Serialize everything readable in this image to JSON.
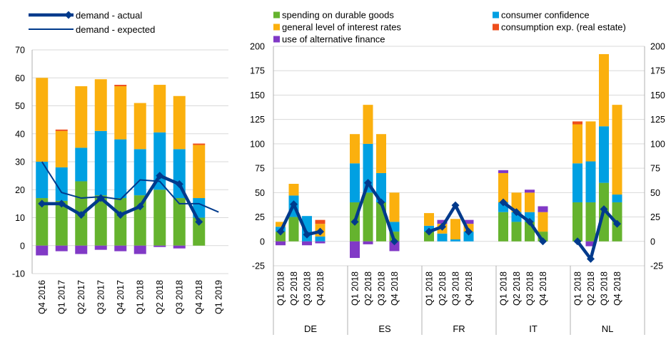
{
  "colors": {
    "durable": "#65b32e",
    "confidence": "#00a0e2",
    "interest": "#fbb00e",
    "realestate": "#ee4e1c",
    "altfin": "#8139c6",
    "actual": "#003a8c",
    "grid": "#d9d9d9",
    "axis": "#b0b0b0"
  },
  "chart_data": [
    {
      "type": "bar",
      "stacked": true,
      "categories": [
        "Q4 2016",
        "Q1 2017",
        "Q2 2017",
        "Q3 2017",
        "Q4 2017",
        "Q1 2018",
        "Q2 2018",
        "Q3 2018",
        "Q4 2018",
        "Q1 2019"
      ],
      "ylim": [
        -10,
        70
      ],
      "yticks": [
        -10,
        0,
        10,
        20,
        30,
        40,
        50,
        60,
        70
      ],
      "grid": true,
      "legend": "top-left",
      "series": [
        {
          "name": "spending on durable goods",
          "values": [
            17,
            16,
            23,
            18,
            17,
            18,
            20,
            17,
            10,
            null
          ]
        },
        {
          "name": "consumer confidence",
          "values": [
            13,
            12,
            12,
            23,
            21,
            16.5,
            20.5,
            17.5,
            7,
            null
          ]
        },
        {
          "name": "general level of interest rates",
          "values": [
            30,
            13,
            22,
            18.5,
            19,
            16.5,
            17,
            19,
            19,
            null
          ]
        },
        {
          "name": "consumption exp. (real estate)",
          "values": [
            0,
            0.5,
            0,
            0,
            0.5,
            0,
            0,
            0,
            0.5,
            null
          ]
        },
        {
          "name": "use of alternative finance",
          "values": [
            -3.5,
            -2,
            -3,
            -1.5,
            -2,
            -3,
            -0.5,
            -1,
            0,
            null
          ]
        }
      ],
      "lines": [
        {
          "name": "demand - actual",
          "values": [
            15,
            15,
            11,
            17,
            11,
            14,
            25,
            22,
            8.5,
            null
          ]
        },
        {
          "name": "demand - expected",
          "values": [
            30,
            19,
            17,
            17.5,
            16.5,
            23.5,
            23,
            15,
            15,
            12
          ]
        }
      ],
      "legend_entries": [
        "demand - actual",
        "demand - expected"
      ]
    },
    {
      "type": "bar",
      "stacked": true,
      "groups": [
        {
          "label": "DE",
          "categories": [
            "Q1 2018",
            "Q2 2018",
            "Q3 2018",
            "Q4 2018"
          ]
        },
        {
          "label": "ES",
          "categories": [
            "Q1 2018",
            "Q2 2018",
            "Q3 2018",
            "Q4 2018"
          ]
        },
        {
          "label": "FR",
          "categories": [
            "Q1 2018",
            "Q2 2018",
            "Q3 2018",
            "Q4 2018"
          ]
        },
        {
          "label": "IT",
          "categories": [
            "Q1 2018",
            "Q2 2018",
            "Q3 2018",
            "Q4 2018"
          ]
        },
        {
          "label": "NL",
          "categories": [
            "Q1 2018",
            "Q2 2018",
            "Q3 2018",
            "Q4 2018"
          ]
        }
      ],
      "ylim": [
        -25,
        200
      ],
      "yticks": [
        -25,
        0,
        25,
        50,
        75,
        100,
        125,
        150,
        175,
        200
      ],
      "grid": true,
      "legend": "top",
      "series": [
        {
          "name": "spending on durable goods",
          "values": [
            [
              10,
              25,
              0,
              0
            ],
            [
              40,
              50,
              40,
              10
            ],
            [
              10,
              0,
              0,
              0
            ],
            [
              30,
              20,
              20,
              10
            ],
            [
              40,
              40,
              60,
              40
            ]
          ]
        },
        {
          "name": "consumer confidence",
          "values": [
            [
              5,
              22,
              26,
              5
            ],
            [
              40,
              50,
              30,
              10
            ],
            [
              6,
              8,
              2,
              10
            ],
            [
              10,
              10,
              10,
              0
            ],
            [
              40,
              42,
              58,
              8
            ]
          ]
        },
        {
          "name": "general level of interest rates",
          "values": [
            [
              5,
              12,
              0,
              13
            ],
            [
              30,
              40,
              40,
              30
            ],
            [
              13,
              10,
              21,
              8
            ],
            [
              30,
              20,
              20,
              20
            ],
            [
              40,
              41,
              74,
              92
            ]
          ]
        },
        {
          "name": "consumption exp. (real estate)",
          "values": [
            [
              0,
              0,
              0,
              4
            ],
            [
              0,
              0,
              0,
              0
            ],
            [
              0,
              0,
              0,
              0
            ],
            [
              0,
              0,
              0,
              0
            ],
            [
              3,
              0,
              0,
              0
            ]
          ]
        },
        {
          "name": "use of alternative finance",
          "values": [
            [
              -4,
              0,
              -4,
              -2
            ],
            [
              -17,
              -3,
              0,
              -10
            ],
            [
              0,
              4,
              0,
              4
            ],
            [
              3,
              0,
              3,
              6
            ],
            [
              0,
              -5,
              0,
              0
            ]
          ]
        }
      ],
      "lines": [
        {
          "name": "demand - actual",
          "values": [
            [
              10,
              38,
              7,
              10
            ],
            [
              20,
              60,
              40,
              0
            ],
            [
              10,
              15,
              37,
              10
            ],
            [
              40,
              30,
              20,
              0
            ],
            [
              0,
              -18,
              33,
              18
            ]
          ]
        }
      ],
      "legend_entries": [
        "spending on durable goods",
        "consumer confidence",
        "general level of interest rates",
        "consumption exp. (real estate)",
        "use of alternative finance"
      ]
    }
  ]
}
